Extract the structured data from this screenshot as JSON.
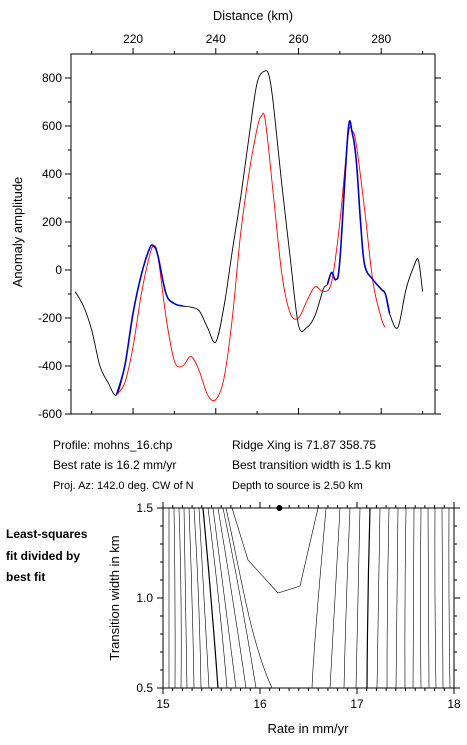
{
  "profile_label": "Profile: mohns_16.chp",
  "ridge_label": "Ridge Xing is 71.87 358.75",
  "rate_label": "Best rate is 16.2 mm/yr",
  "width_label": "Best transition width is 1.5 km",
  "azimuth_label": "Proj. Az: 142.0 deg. CW of N",
  "depth_label": "Depth to source is   2.50 km",
  "contour_caption": [
    "Least-squares",
    "fit divided by",
    "best fit"
  ],
  "chart_data": [
    {
      "type": "line",
      "xlabel": "Distance (km)",
      "ylabel": "Anomaly amplitude",
      "xlim": [
        205,
        293
      ],
      "ylim": [
        -600,
        900
      ],
      "x_ticks": [
        220,
        240,
        260,
        280
      ],
      "y_ticks": [
        800,
        600,
        400,
        200,
        0,
        -200,
        -400,
        -600
      ],
      "grid": false,
      "series": [
        {
          "color": "#000000",
          "x": [
            206,
            208,
            210,
            212,
            214,
            216,
            218,
            220,
            222,
            224,
            225,
            226,
            228,
            230,
            232,
            234,
            236,
            238,
            240,
            242,
            244,
            246,
            248,
            250,
            252,
            253,
            254,
            256,
            258,
            260,
            262,
            264,
            266,
            267,
            268,
            269,
            270,
            272,
            273,
            274,
            275,
            276,
            278,
            280,
            281,
            282,
            284,
            286,
            288,
            289,
            290
          ],
          "values": [
            -90,
            -150,
            -250,
            -400,
            -470,
            -520,
            -400,
            -180,
            -20,
            90,
            100,
            60,
            -100,
            -140,
            -150,
            -155,
            -170,
            -240,
            -300,
            -150,
            80,
            300,
            550,
            780,
            830,
            800,
            680,
            350,
            50,
            -230,
            -240,
            -190,
            -80,
            -60,
            -10,
            -40,
            40,
            580,
            570,
            450,
            200,
            20,
            -40,
            -80,
            -100,
            -180,
            -240,
            -80,
            20,
            40,
            -90
          ]
        },
        {
          "color": "#ff0000",
          "x": [
            216,
            218,
            220,
            222,
            224,
            225,
            226,
            228,
            230,
            232,
            234,
            236,
            238,
            240,
            242,
            244,
            246,
            248,
            250,
            251,
            252,
            254,
            256,
            258,
            260,
            262,
            264,
            266,
            268,
            270,
            272,
            273,
            274,
            276,
            278,
            280,
            281
          ],
          "values": [
            -520,
            -470,
            -320,
            -100,
            60,
            100,
            60,
            -200,
            -380,
            -400,
            -360,
            -420,
            -520,
            -540,
            -450,
            -200,
            150,
            400,
            590,
            640,
            620,
            300,
            -20,
            -180,
            -200,
            -130,
            -70,
            -90,
            -50,
            200,
            560,
            580,
            520,
            250,
            -50,
            -200,
            -240
          ]
        },
        {
          "color": "#0000cc",
          "x": [
            216,
            218,
            220,
            222,
            224,
            225,
            226,
            228,
            230,
            232
          ],
          "values": [
            -520,
            -400,
            -180,
            -20,
            90,
            100,
            60,
            -100,
            -140,
            -150
          ]
        },
        {
          "color": "#0000cc",
          "x": [
            267,
            268,
            269,
            270,
            272,
            273,
            274,
            275,
            276,
            278,
            280,
            281,
            282
          ],
          "values": [
            -60,
            -10,
            -40,
            40,
            580,
            570,
            450,
            200,
            20,
            -40,
            -80,
            -100,
            -180
          ]
        }
      ]
    },
    {
      "type": "contour",
      "xlabel": "Rate in mm/yr",
      "ylabel": "Transition width in km",
      "xlim": [
        15,
        18
      ],
      "ylim": [
        0.5,
        1.5
      ],
      "x_ticks": [
        15,
        16,
        17,
        18
      ],
      "y_ticks": [
        0.5,
        1.0,
        1.5
      ],
      "best_fit": {
        "x": 16.2,
        "y": 1.5
      }
    }
  ]
}
